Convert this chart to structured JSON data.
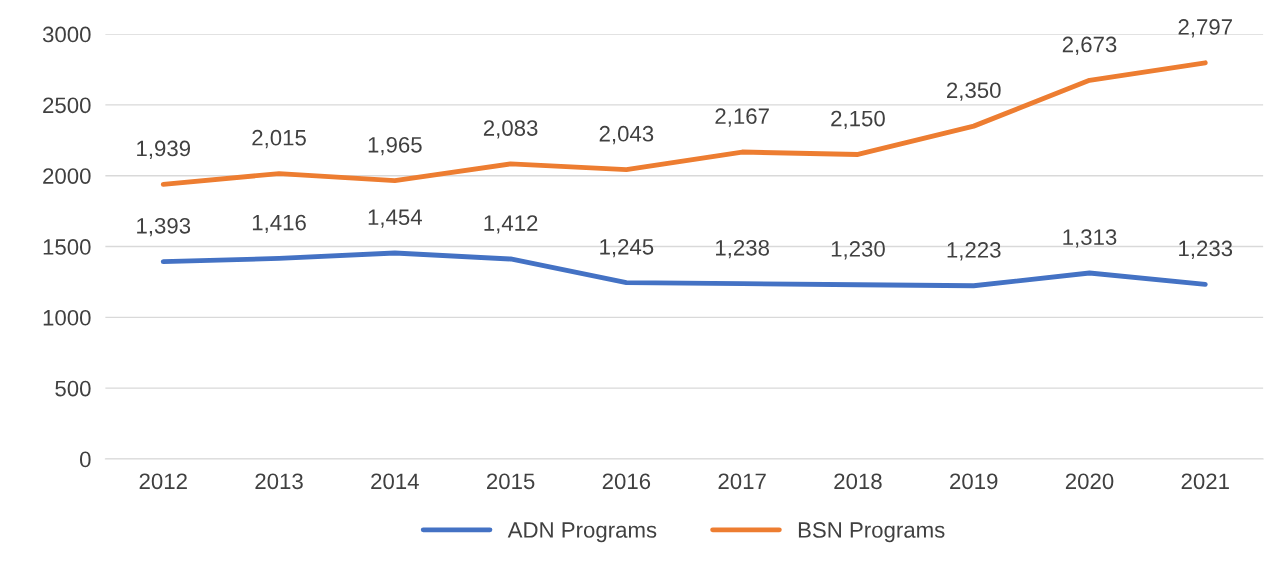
{
  "chart_data": {
    "type": "line",
    "categories": [
      "2012",
      "2013",
      "2014",
      "2015",
      "2016",
      "2017",
      "2018",
      "2019",
      "2020",
      "2021"
    ],
    "series": [
      {
        "name": "ADN Programs",
        "color": "#4472c4",
        "values": [
          1393,
          1416,
          1454,
          1412,
          1245,
          1238,
          1230,
          1223,
          1313,
          1233
        ],
        "value_labels": [
          "1,393",
          "1,416",
          "1,454",
          "1,412",
          "1,245",
          "1,238",
          "1,230",
          "1,223",
          "1,313",
          "1,233"
        ]
      },
      {
        "name": "BSN Programs",
        "color": "#ed7d31",
        "values": [
          1939,
          2015,
          1965,
          2083,
          2043,
          2167,
          2150,
          2350,
          2673,
          2797
        ],
        "value_labels": [
          "1,939",
          "2,015",
          "1,965",
          "2,083",
          "2,043",
          "2,167",
          "2,150",
          "2,350",
          "2,673",
          "2,797"
        ]
      }
    ],
    "ylim": [
      0,
      3000
    ],
    "yticks": [
      0,
      500,
      1000,
      1500,
      2000,
      2500,
      3000
    ],
    "grid": "y",
    "legend": "bottom",
    "marker": "none",
    "line_style": "solid"
  }
}
